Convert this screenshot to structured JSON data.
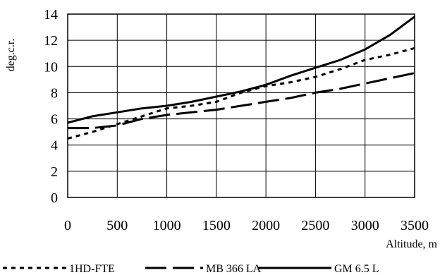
{
  "chart_data": {
    "type": "line",
    "xlabel": "Altitude, m",
    "ylabel": "deg.c.r.",
    "xlim": [
      0,
      3500
    ],
    "ylim": [
      0,
      14
    ],
    "x_ticks": [
      "0",
      "500",
      "1000",
      "1500",
      "2000",
      "2500",
      "3000",
      "3500"
    ],
    "y_ticks": [
      "0",
      "2",
      "4",
      "6",
      "8",
      "10",
      "12",
      "14"
    ],
    "grid": true,
    "legend_position": "bottom",
    "series": [
      {
        "name": "1HD-FTE",
        "style": "dotted",
        "color": "#000000",
        "points": [
          [
            0,
            4.5
          ],
          [
            250,
            5.0
          ],
          [
            500,
            5.6
          ],
          [
            750,
            6.2
          ],
          [
            1000,
            6.8
          ],
          [
            1250,
            7.0
          ],
          [
            1500,
            7.3
          ],
          [
            1750,
            8.0
          ],
          [
            2000,
            8.5
          ],
          [
            2250,
            8.8
          ],
          [
            2500,
            9.2
          ],
          [
            2750,
            9.8
          ],
          [
            3000,
            10.5
          ],
          [
            3250,
            10.9
          ],
          [
            3500,
            11.4
          ]
        ]
      },
      {
        "name": "MB 366 LA",
        "style": "long-dash",
        "color": "#000000",
        "points": [
          [
            0,
            5.3
          ],
          [
            250,
            5.3
          ],
          [
            500,
            5.5
          ],
          [
            750,
            6.0
          ],
          [
            1000,
            6.3
          ],
          [
            1250,
            6.5
          ],
          [
            1500,
            6.7
          ],
          [
            1750,
            7.0
          ],
          [
            2000,
            7.3
          ],
          [
            2250,
            7.6
          ],
          [
            2500,
            8.0
          ],
          [
            2750,
            8.3
          ],
          [
            3000,
            8.7
          ],
          [
            3250,
            9.1
          ],
          [
            3500,
            9.5
          ]
        ]
      },
      {
        "name": "GM 6.5 L",
        "style": "solid",
        "color": "#000000",
        "points": [
          [
            0,
            5.7
          ],
          [
            250,
            6.2
          ],
          [
            500,
            6.5
          ],
          [
            750,
            6.8
          ],
          [
            1000,
            7.0
          ],
          [
            1250,
            7.3
          ],
          [
            1500,
            7.7
          ],
          [
            1750,
            8.1
          ],
          [
            2000,
            8.6
          ],
          [
            2250,
            9.3
          ],
          [
            2500,
            9.9
          ],
          [
            2750,
            10.5
          ],
          [
            3000,
            11.3
          ],
          [
            3250,
            12.4
          ],
          [
            3500,
            13.8
          ]
        ]
      }
    ]
  }
}
